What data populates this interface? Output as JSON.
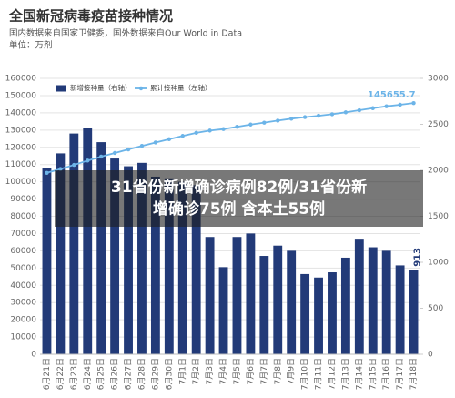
{
  "chart_data": {
    "type": "bar_line",
    "title": "全国新冠病毒疫苗接种情况",
    "subtitle": "国内数据来自国家卫健委，国外数据来自Our World in Data",
    "unit": "单位：万剂",
    "categories": [
      "6月21日",
      "6月22日",
      "6月23日",
      "6月24日",
      "6月25日",
      "6月26日",
      "6月27日",
      "6月28日",
      "6月29日",
      "6月30日",
      "7月1日",
      "7月2日",
      "7月3日",
      "7月4日",
      "7月5日",
      "7月6日",
      "7月7日",
      "7月8日",
      "7月9日",
      "7月10日",
      "7月11日",
      "7月12日",
      "7月13日",
      "7月14日",
      "7月15日",
      "7月16日",
      "7月17日",
      "7月18日"
    ],
    "series": [
      {
        "name": "新增接种量（右轴）",
        "color": "#223a78",
        "axis": "y2",
        "values": [
          2025,
          2184,
          2400,
          2456,
          2306,
          2128,
          2044,
          2081,
          1931,
          1913,
          1875,
          1838,
          1275,
          947,
          1275,
          1313,
          1069,
          1181,
          1125,
          872,
          834,
          891,
          1050,
          1256,
          1163,
          1125,
          966,
          913
        ]
      },
      {
        "name": "累计接种量（左轴）",
        "color": "#6cb4e8",
        "axis": "y",
        "values": [
          105200,
          107400,
          109800,
          112300,
          114600,
          116700,
          118800,
          120800,
          122800,
          124700,
          126600,
          128400,
          129700,
          130600,
          131900,
          133200,
          134300,
          135500,
          136600,
          137500,
          138300,
          139200,
          140300,
          141500,
          142700,
          143800,
          144700,
          145655.7
        ]
      }
    ],
    "ylim": [
      0,
      160000
    ],
    "yticks": [
      0,
      10000,
      20000,
      30000,
      40000,
      50000,
      60000,
      70000,
      80000,
      90000,
      100000,
      110000,
      120000,
      130000,
      140000,
      150000,
      160000
    ],
    "y2lim": [
      0,
      3000
    ],
    "y2ticks": [
      0,
      500,
      1000,
      1500,
      2000,
      2500,
      3000
    ],
    "grid": true
  },
  "overlay_caption": [
    "31省份新增确诊病例82例/31省份新",
    "增确诊75例 含本土55例"
  ]
}
